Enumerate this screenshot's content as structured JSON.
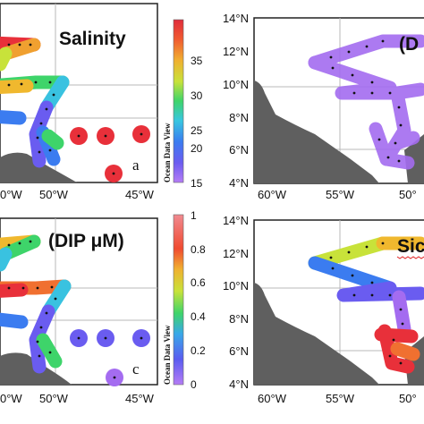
{
  "panels": {
    "a": {
      "title": "Salinity",
      "letter": "a",
      "x_ticks": [
        "50°W",
        "45°W"
      ],
      "colorbar": {
        "ticks": [
          "35",
          "30",
          "25",
          "20",
          "15"
        ],
        "label": "Ocean Data View"
      }
    },
    "b": {
      "title": "(D",
      "x_ticks": [
        "60°W",
        "55°W",
        "50°"
      ],
      "y_ticks": [
        "14°N",
        "12°N",
        "10°N",
        "8°N",
        "6°N",
        "4°N"
      ]
    },
    "c": {
      "title": "(DIP μM)",
      "letter": "c",
      "x_ticks": [
        "50°W",
        "45°W"
      ],
      "colorbar": {
        "ticks": [
          "1",
          "0.8",
          "0.6",
          "0.4",
          "0.2",
          "0"
        ],
        "label": "Ocean Data View"
      }
    },
    "d": {
      "title": "Sic",
      "x_ticks": [
        "60°W",
        "55°W",
        "50°"
      ],
      "y_ticks": [
        "14°N",
        "12°N",
        "10°N",
        "8°N",
        "6°N",
        "4°N"
      ]
    },
    "partial_ticks": {
      "left_top": "0°W",
      "left_bottom": "0°W"
    }
  },
  "colors": {
    "land": "#5f5f5f",
    "grid": "#b8b8b8",
    "ramp": [
      "#a46cf0",
      "#6a5cf0",
      "#3b7cf0",
      "#39c2e0",
      "#3ed46a",
      "#c8e23a",
      "#f0b82e",
      "#f07030",
      "#e8303a"
    ]
  }
}
